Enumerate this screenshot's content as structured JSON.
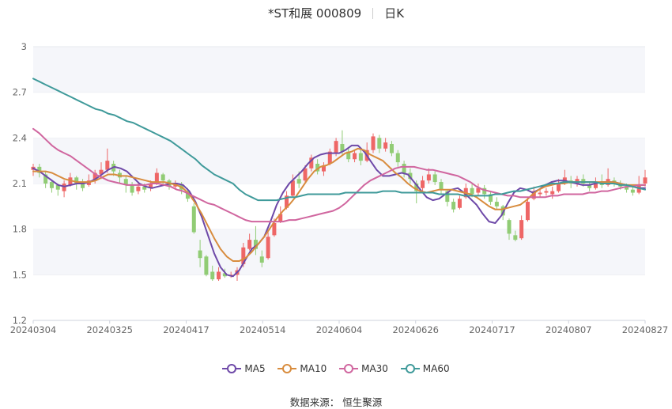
{
  "title": {
    "name": "*ST和展 000809",
    "period": "日K"
  },
  "source_label": "数据来源：",
  "source_name": "恒生聚源",
  "colors": {
    "up": "#ee6666",
    "down": "#91cc75",
    "ma5": "#6e49a8",
    "ma10": "#d88c3e",
    "ma30": "#d0669f",
    "ma60": "#3f9a9a"
  },
  "chart_data": {
    "type": "candlestick",
    "x_tick_labels": [
      "20240304",
      "20240325",
      "20240417",
      "20240514",
      "20240604",
      "20240626",
      "20240717",
      "20240807",
      "20240827"
    ],
    "y_ticks": [
      1.2,
      1.5,
      1.8,
      2.1,
      2.4,
      2.7,
      3
    ],
    "ylim": [
      1.2,
      3.0
    ],
    "grid": true,
    "legend_position": "bottom",
    "ma_series": [
      {
        "name": "MA5",
        "values": [
          2.2,
          2.18,
          2.15,
          2.12,
          2.09,
          2.08,
          2.09,
          2.1,
          2.1,
          2.11,
          2.13,
          2.16,
          2.19,
          2.21,
          2.2,
          2.18,
          2.14,
          2.1,
          2.08,
          2.07,
          2.08,
          2.09,
          2.1,
          2.1,
          2.09,
          2.05,
          1.98,
          1.88,
          1.76,
          1.64,
          1.55,
          1.5,
          1.49,
          1.53,
          1.6,
          1.67,
          1.7,
          1.75,
          1.85,
          1.96,
          2.04,
          2.1,
          2.14,
          2.18,
          2.23,
          2.27,
          2.29,
          2.3,
          2.3,
          2.3,
          2.32,
          2.35,
          2.35,
          2.31,
          2.25,
          2.19,
          2.15,
          2.15,
          2.16,
          2.17,
          2.16,
          2.11,
          2.06,
          2.01,
          1.99,
          2.0,
          2.03,
          2.06,
          2.07,
          2.04,
          2.0,
          1.96,
          1.9,
          1.85,
          1.84,
          1.89,
          1.97,
          2.04,
          2.07,
          2.06,
          2.04,
          2.06,
          2.09,
          2.11,
          2.12,
          2.12,
          2.11,
          2.1,
          2.09,
          2.09,
          2.1,
          2.11,
          2.11,
          2.11,
          2.1,
          2.09,
          2.08,
          2.07,
          2.07
        ]
      },
      {
        "name": "MA10",
        "values": [
          2.18,
          2.18,
          2.18,
          2.17,
          2.15,
          2.13,
          2.12,
          2.11,
          2.11,
          2.11,
          2.12,
          2.14,
          2.16,
          2.16,
          2.15,
          2.15,
          2.14,
          2.13,
          2.12,
          2.11,
          2.11,
          2.11,
          2.1,
          2.09,
          2.07,
          2.03,
          1.97,
          1.9,
          1.82,
          1.74,
          1.67,
          1.62,
          1.59,
          1.59,
          1.61,
          1.65,
          1.7,
          1.75,
          1.81,
          1.87,
          1.92,
          1.96,
          2.01,
          2.07,
          2.13,
          2.18,
          2.21,
          2.22,
          2.24,
          2.27,
          2.3,
          2.31,
          2.33,
          2.32,
          2.29,
          2.27,
          2.25,
          2.21,
          2.17,
          2.14,
          2.1,
          2.07,
          2.05,
          2.04,
          2.05,
          2.06,
          2.06,
          2.06,
          2.05,
          2.04,
          2.03,
          2.01,
          1.98,
          1.95,
          1.93,
          1.93,
          1.94,
          1.95,
          1.96,
          1.99,
          2.03,
          2.06,
          2.08,
          2.09,
          2.1,
          2.1,
          2.11,
          2.11,
          2.11,
          2.11,
          2.11,
          2.11,
          2.11,
          2.11,
          2.1,
          2.09,
          2.09,
          2.09,
          2.09
        ]
      },
      {
        "name": "MA30",
        "values": [
          2.46,
          2.43,
          2.39,
          2.35,
          2.32,
          2.3,
          2.28,
          2.25,
          2.22,
          2.19,
          2.16,
          2.14,
          2.12,
          2.11,
          2.1,
          2.09,
          2.09,
          2.09,
          2.09,
          2.1,
          2.1,
          2.09,
          2.08,
          2.06,
          2.05,
          2.03,
          2.01,
          1.99,
          1.97,
          1.96,
          1.94,
          1.92,
          1.9,
          1.88,
          1.86,
          1.85,
          1.85,
          1.85,
          1.85,
          1.85,
          1.85,
          1.86,
          1.86,
          1.87,
          1.88,
          1.89,
          1.9,
          1.91,
          1.92,
          1.94,
          1.97,
          2.01,
          2.05,
          2.09,
          2.12,
          2.14,
          2.16,
          2.18,
          2.2,
          2.21,
          2.21,
          2.21,
          2.2,
          2.19,
          2.19,
          2.18,
          2.17,
          2.16,
          2.15,
          2.13,
          2.11,
          2.08,
          2.06,
          2.05,
          2.04,
          2.03,
          2.02,
          2.02,
          2.01,
          2.01,
          2.01,
          2.01,
          2.01,
          2.02,
          2.02,
          2.03,
          2.03,
          2.03,
          2.03,
          2.04,
          2.04,
          2.05,
          2.05,
          2.06,
          2.07,
          2.08,
          2.08,
          2.09,
          2.09
        ]
      },
      {
        "name": "MA60",
        "values": [
          2.79,
          2.77,
          2.75,
          2.73,
          2.71,
          2.69,
          2.67,
          2.65,
          2.63,
          2.61,
          2.59,
          2.58,
          2.56,
          2.55,
          2.53,
          2.51,
          2.5,
          2.48,
          2.46,
          2.44,
          2.42,
          2.4,
          2.38,
          2.35,
          2.32,
          2.29,
          2.26,
          2.22,
          2.19,
          2.16,
          2.14,
          2.12,
          2.1,
          2.06,
          2.03,
          2.01,
          1.99,
          1.99,
          1.99,
          1.99,
          2.0,
          2.01,
          2.01,
          2.02,
          2.03,
          2.03,
          2.03,
          2.03,
          2.03,
          2.03,
          2.04,
          2.04,
          2.04,
          2.04,
          2.04,
          2.04,
          2.05,
          2.05,
          2.05,
          2.04,
          2.04,
          2.04,
          2.04,
          2.04,
          2.04,
          2.03,
          2.03,
          2.03,
          2.03,
          2.02,
          2.02,
          2.02,
          2.02,
          2.02,
          2.03,
          2.03,
          2.04,
          2.05,
          2.05,
          2.06,
          2.07,
          2.08,
          2.09,
          2.1,
          2.1,
          2.11,
          2.11,
          2.11,
          2.11,
          2.11,
          2.11,
          2.1,
          2.1,
          2.1,
          2.09,
          2.09,
          2.08,
          2.07,
          2.06
        ]
      }
    ],
    "candles": [
      {
        "o": 2.19,
        "c": 2.21,
        "h": 2.23,
        "l": 2.15
      },
      {
        "o": 2.21,
        "c": 2.17,
        "h": 2.23,
        "l": 2.14
      },
      {
        "o": 2.16,
        "c": 2.1,
        "h": 2.18,
        "l": 2.07
      },
      {
        "o": 2.11,
        "c": 2.07,
        "h": 2.12,
        "l": 2.04
      },
      {
        "o": 2.09,
        "c": 2.06,
        "h": 2.1,
        "l": 2.02
      },
      {
        "o": 2.05,
        "c": 2.1,
        "h": 2.12,
        "l": 2.01
      },
      {
        "o": 2.09,
        "c": 2.14,
        "h": 2.17,
        "l": 2.08
      },
      {
        "o": 2.14,
        "c": 2.1,
        "h": 2.15,
        "l": 2.06
      },
      {
        "o": 2.1,
        "c": 2.07,
        "h": 2.13,
        "l": 2.05
      },
      {
        "o": 2.09,
        "c": 2.12,
        "h": 2.16,
        "l": 2.08
      },
      {
        "o": 2.12,
        "c": 2.17,
        "h": 2.19,
        "l": 2.1
      },
      {
        "o": 2.16,
        "c": 2.19,
        "h": 2.24,
        "l": 2.13
      },
      {
        "o": 2.19,
        "c": 2.25,
        "h": 2.33,
        "l": 2.17
      },
      {
        "o": 2.23,
        "c": 2.18,
        "h": 2.25,
        "l": 2.15
      },
      {
        "o": 2.17,
        "c": 2.14,
        "h": 2.19,
        "l": 2.1
      },
      {
        "o": 2.13,
        "c": 2.09,
        "h": 2.15,
        "l": 2.04
      },
      {
        "o": 2.09,
        "c": 2.04,
        "h": 2.11,
        "l": 2.02
      },
      {
        "o": 2.05,
        "c": 2.08,
        "h": 2.11,
        "l": 2.03
      },
      {
        "o": 2.08,
        "c": 2.06,
        "h": 2.1,
        "l": 2.04
      },
      {
        "o": 2.07,
        "c": 2.1,
        "h": 2.12,
        "l": 2.05
      },
      {
        "o": 2.1,
        "c": 2.17,
        "h": 2.2,
        "l": 2.09
      },
      {
        "o": 2.16,
        "c": 2.12,
        "h": 2.17,
        "l": 2.09
      },
      {
        "o": 2.12,
        "c": 2.08,
        "h": 2.13,
        "l": 2.06
      },
      {
        "o": 2.08,
        "c": 2.1,
        "h": 2.12,
        "l": 2.06
      },
      {
        "o": 2.09,
        "c": 2.06,
        "h": 2.11,
        "l": 2.03
      },
      {
        "o": 2.05,
        "c": 2.0,
        "h": 2.07,
        "l": 1.98
      },
      {
        "o": 1.95,
        "c": 1.78,
        "h": 1.97,
        "l": 1.77
      },
      {
        "o": 1.66,
        "c": 1.61,
        "h": 1.73,
        "l": 1.55
      },
      {
        "o": 1.62,
        "c": 1.5,
        "h": 1.63,
        "l": 1.49
      },
      {
        "o": 1.52,
        "c": 1.47,
        "h": 1.56,
        "l": 1.46
      },
      {
        "o": 1.47,
        "c": 1.52,
        "h": 1.55,
        "l": 1.46
      },
      {
        "o": 1.51,
        "c": 1.49,
        "h": 1.54,
        "l": 1.48
      },
      {
        "o": 1.49,
        "c": 1.5,
        "h": 1.52,
        "l": 1.48
      },
      {
        "o": 1.5,
        "c": 1.53,
        "h": 1.55,
        "l": 1.46
      },
      {
        "o": 1.57,
        "c": 1.68,
        "h": 1.71,
        "l": 1.55
      },
      {
        "o": 1.67,
        "c": 1.73,
        "h": 1.77,
        "l": 1.66
      },
      {
        "o": 1.73,
        "c": 1.67,
        "h": 1.82,
        "l": 1.63
      },
      {
        "o": 1.62,
        "c": 1.58,
        "h": 1.66,
        "l": 1.55
      },
      {
        "o": 1.61,
        "c": 1.75,
        "h": 1.78,
        "l": 1.6
      },
      {
        "o": 1.76,
        "c": 1.84,
        "h": 1.87,
        "l": 1.75
      },
      {
        "o": 1.85,
        "c": 1.9,
        "h": 1.95,
        "l": 1.84
      },
      {
        "o": 1.94,
        "c": 2.02,
        "h": 2.05,
        "l": 1.93
      },
      {
        "o": 2.02,
        "c": 2.12,
        "h": 2.16,
        "l": 2.01
      },
      {
        "o": 2.13,
        "c": 2.1,
        "h": 2.18,
        "l": 2.07
      },
      {
        "o": 2.12,
        "c": 2.2,
        "h": 2.22,
        "l": 2.11
      },
      {
        "o": 2.2,
        "c": 2.27,
        "h": 2.29,
        "l": 2.18
      },
      {
        "o": 2.23,
        "c": 2.18,
        "h": 2.26,
        "l": 2.16
      },
      {
        "o": 2.18,
        "c": 2.22,
        "h": 2.24,
        "l": 2.15
      },
      {
        "o": 2.23,
        "c": 2.31,
        "h": 2.33,
        "l": 2.22
      },
      {
        "o": 2.3,
        "c": 2.38,
        "h": 2.4,
        "l": 2.28
      },
      {
        "o": 2.36,
        "c": 2.31,
        "h": 2.45,
        "l": 2.29
      },
      {
        "o": 2.31,
        "c": 2.26,
        "h": 2.34,
        "l": 2.24
      },
      {
        "o": 2.26,
        "c": 2.3,
        "h": 2.32,
        "l": 2.24
      },
      {
        "o": 2.3,
        "c": 2.25,
        "h": 2.33,
        "l": 2.22
      },
      {
        "o": 2.25,
        "c": 2.32,
        "h": 2.37,
        "l": 2.24
      },
      {
        "o": 2.32,
        "c": 2.41,
        "h": 2.43,
        "l": 2.3
      },
      {
        "o": 2.4,
        "c": 2.33,
        "h": 2.42,
        "l": 2.3
      },
      {
        "o": 2.33,
        "c": 2.37,
        "h": 2.4,
        "l": 2.31
      },
      {
        "o": 2.36,
        "c": 2.3,
        "h": 2.38,
        "l": 2.28
      },
      {
        "o": 2.3,
        "c": 2.24,
        "h": 2.32,
        "l": 2.21
      },
      {
        "o": 2.23,
        "c": 2.17,
        "h": 2.25,
        "l": 2.14
      },
      {
        "o": 2.17,
        "c": 2.13,
        "h": 2.2,
        "l": 2.1
      },
      {
        "o": 2.1,
        "c": 2.05,
        "h": 2.12,
        "l": 1.97
      },
      {
        "o": 2.07,
        "c": 2.12,
        "h": 2.15,
        "l": 2.05
      },
      {
        "o": 2.12,
        "c": 2.16,
        "h": 2.2,
        "l": 2.1
      },
      {
        "o": 2.16,
        "c": 2.11,
        "h": 2.18,
        "l": 2.09
      },
      {
        "o": 2.11,
        "c": 2.06,
        "h": 2.13,
        "l": 2.03
      },
      {
        "o": 2.05,
        "c": 1.98,
        "h": 2.06,
        "l": 1.95
      },
      {
        "o": 1.98,
        "c": 1.93,
        "h": 2.0,
        "l": 1.91
      },
      {
        "o": 1.94,
        "c": 2.0,
        "h": 2.02,
        "l": 1.93
      },
      {
        "o": 2.01,
        "c": 2.07,
        "h": 2.1,
        "l": 2.0
      },
      {
        "o": 2.07,
        "c": 2.03,
        "h": 2.1,
        "l": 2.01
      },
      {
        "o": 2.04,
        "c": 2.07,
        "h": 2.1,
        "l": 2.02
      },
      {
        "o": 2.07,
        "c": 2.03,
        "h": 2.09,
        "l": 2.0
      },
      {
        "o": 2.03,
        "c": 1.98,
        "h": 2.05,
        "l": 1.96
      },
      {
        "o": 1.98,
        "c": 1.95,
        "h": 2.01,
        "l": 1.93
      },
      {
        "o": 1.95,
        "c": 1.89,
        "h": 1.96,
        "l": 1.86
      },
      {
        "o": 1.86,
        "c": 1.77,
        "h": 1.87,
        "l": 1.73
      },
      {
        "o": 1.76,
        "c": 1.73,
        "h": 1.79,
        "l": 1.72
      },
      {
        "o": 1.74,
        "c": 1.86,
        "h": 1.89,
        "l": 1.73
      },
      {
        "o": 1.86,
        "c": 1.98,
        "h": 2.01,
        "l": 1.85
      },
      {
        "o": 2.0,
        "c": 2.05,
        "h": 2.08,
        "l": 1.99
      },
      {
        "o": 2.03,
        "c": 2.04,
        "h": 2.06,
        "l": 2.01
      },
      {
        "o": 2.04,
        "c": 2.05,
        "h": 2.07,
        "l": 2.02
      },
      {
        "o": 2.03,
        "c": 2.05,
        "h": 2.08,
        "l": 2.0
      },
      {
        "o": 2.05,
        "c": 2.1,
        "h": 2.13,
        "l": 2.04
      },
      {
        "o": 2.1,
        "c": 2.14,
        "h": 2.19,
        "l": 2.09
      },
      {
        "o": 2.12,
        "c": 2.1,
        "h": 2.15,
        "l": 2.07
      },
      {
        "o": 2.1,
        "c": 2.13,
        "h": 2.15,
        "l": 2.08
      },
      {
        "o": 2.13,
        "c": 2.1,
        "h": 2.16,
        "l": 2.08
      },
      {
        "o": 2.09,
        "c": 2.07,
        "h": 2.11,
        "l": 2.05
      },
      {
        "o": 2.07,
        "c": 2.11,
        "h": 2.14,
        "l": 2.06
      },
      {
        "o": 2.11,
        "c": 2.09,
        "h": 2.16,
        "l": 2.07
      },
      {
        "o": 2.09,
        "c": 2.13,
        "h": 2.2,
        "l": 2.08
      },
      {
        "o": 2.12,
        "c": 2.1,
        "h": 2.14,
        "l": 2.08
      },
      {
        "o": 2.1,
        "c": 2.08,
        "h": 2.12,
        "l": 2.06
      },
      {
        "o": 2.08,
        "c": 2.06,
        "h": 2.1,
        "l": 2.04
      },
      {
        "o": 2.06,
        "c": 2.04,
        "h": 2.09,
        "l": 2.02
      },
      {
        "o": 2.04,
        "c": 2.09,
        "h": 2.15,
        "l": 2.03
      },
      {
        "o": 2.1,
        "c": 2.14,
        "h": 2.19,
        "l": 2.08
      }
    ]
  }
}
